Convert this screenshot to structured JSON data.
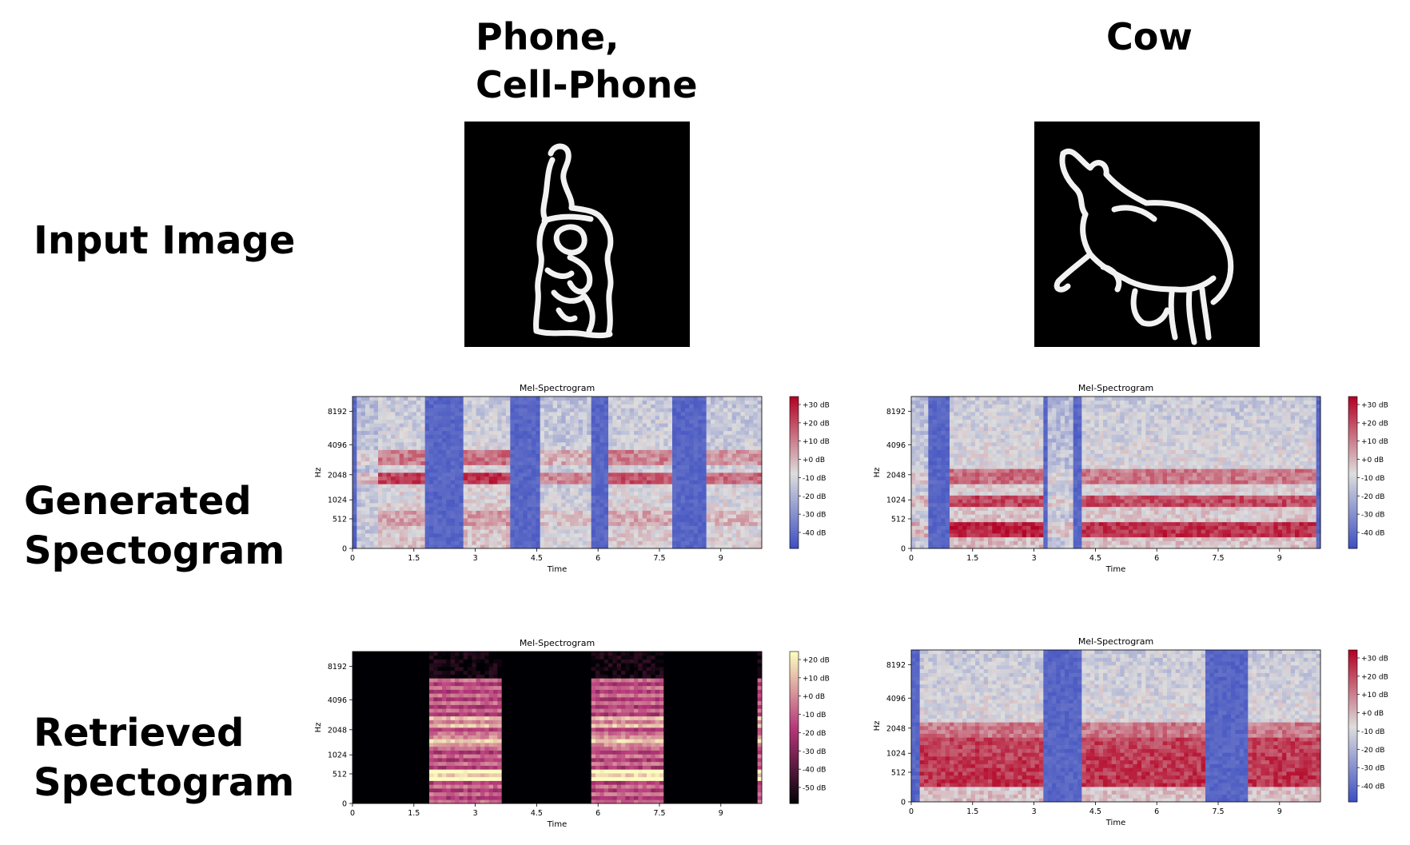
{
  "columns": [
    {
      "title": "Phone,\nCell-Phone",
      "sketch_icon": "phone-sketch"
    },
    {
      "title": "Cow",
      "sketch_icon": "cow-sketch"
    }
  ],
  "rows": [
    {
      "label": "Input Image"
    },
    {
      "label": "Generated\nSpectogram"
    },
    {
      "label": "Retrieved\nSpectogram"
    }
  ],
  "chart_data": [
    {
      "id": "generated-phone",
      "type": "heatmap",
      "title": "Mel-Spectrogram",
      "xlabel": "Time",
      "ylabel": "Hz",
      "xticks": [
        "0",
        "1.5",
        "3",
        "4.5",
        "6",
        "7.5",
        "9"
      ],
      "yticks": [
        "0",
        "512",
        "1024",
        "2048",
        "4096",
        "8192"
      ],
      "xlim": [
        0,
        10
      ],
      "colormap": "coolwarm",
      "colorbar_ticks": [
        "+30 dB",
        "+20 dB",
        "+10 dB",
        "+0 dB",
        "-10 dB",
        "-20 dB",
        "-30 dB",
        "-40 dB"
      ],
      "colors": {
        "low": "#3b4cc0",
        "mid": "#dddddd",
        "high": "#b40426"
      },
      "segments": [
        [
          0.1,
          0.6,
          0.35
        ],
        [
          0.65,
          1.8,
          0.8
        ],
        [
          2.7,
          3.9,
          0.85
        ],
        [
          4.6,
          5.8,
          0.55
        ],
        [
          6.2,
          7.8,
          0.75
        ],
        [
          8.6,
          9.95,
          0.65
        ]
      ],
      "bands": [
        [
          1700,
          2100,
          1.0
        ],
        [
          2700,
          3300,
          0.7
        ],
        [
          400,
          600,
          0.3
        ]
      ]
    },
    {
      "id": "generated-cow",
      "type": "heatmap",
      "title": "Mel-Spectrogram",
      "xlabel": "Time",
      "ylabel": "Hz",
      "xticks": [
        "0",
        "1.5",
        "3",
        "4.5",
        "6",
        "7.5",
        "9"
      ],
      "yticks": [
        "0",
        "512",
        "1024",
        "2048",
        "4096",
        "8192"
      ],
      "xlim": [
        0,
        10
      ],
      "colormap": "coolwarm",
      "colorbar_ticks": [
        "+30 dB",
        "+20 dB",
        "+10 dB",
        "+0 dB",
        "-10 dB",
        "-20 dB",
        "-30 dB",
        "-40 dB"
      ],
      "colors": {
        "low": "#3b4cc0",
        "mid": "#dddddd",
        "high": "#b40426"
      },
      "segments": [
        [
          0,
          0.4,
          0.4
        ],
        [
          0.9,
          3.2,
          0.9
        ],
        [
          3.3,
          4.0,
          0.3
        ],
        [
          4.2,
          9.9,
          0.85
        ]
      ],
      "bands": [
        [
          200,
          400,
          0.9
        ],
        [
          900,
          1100,
          0.8
        ],
        [
          1800,
          2200,
          0.6
        ]
      ]
    },
    {
      "id": "retrieved-phone",
      "type": "heatmap",
      "title": "Mel-Spectrogram",
      "xlabel": "Time",
      "ylabel": "Hz",
      "xticks": [
        "0",
        "1.5",
        "3",
        "4.5",
        "6",
        "7.5",
        "9"
      ],
      "yticks": [
        "0",
        "512",
        "1024",
        "2048",
        "4096",
        "8192"
      ],
      "xlim": [
        0,
        10
      ],
      "colormap": "magma",
      "colorbar_ticks": [
        "+20 dB",
        "+10 dB",
        "+0 dB",
        "-10 dB",
        "-20 dB",
        "-30 dB",
        "-40 dB",
        "-50 dB"
      ],
      "colors": {
        "low": "#000004",
        "mid": "#b5367a",
        "high": "#fcfdbf"
      },
      "segments": [
        [
          1.85,
          3.6,
          0.9
        ],
        [
          5.85,
          7.6,
          0.9
        ],
        [
          9.85,
          10.0,
          0.9
        ]
      ],
      "bands": [
        [
          450,
          560,
          1.0
        ],
        [
          1400,
          1600,
          0.6
        ],
        [
          2300,
          2700,
          0.5
        ]
      ]
    },
    {
      "id": "retrieved-cow",
      "type": "heatmap",
      "title": "Mel-Spectrogram",
      "xlabel": "Time",
      "ylabel": "Hz",
      "xticks": [
        "0",
        "1.5",
        "3",
        "4.5",
        "6",
        "7.5",
        "9"
      ],
      "yticks": [
        "0",
        "512",
        "1024",
        "2048",
        "4096",
        "8192"
      ],
      "xlim": [
        0,
        10
      ],
      "colormap": "coolwarm",
      "colorbar_ticks": [
        "+30 dB",
        "+20 dB",
        "+10 dB",
        "+0 dB",
        "-10 dB",
        "-20 dB",
        "-30 dB",
        "-40 dB"
      ],
      "colors": {
        "low": "#3b4cc0",
        "mid": "#dddddd",
        "high": "#b40426"
      },
      "segments": [
        [
          0.25,
          3.2,
          0.85
        ],
        [
          4.2,
          7.2,
          0.85
        ],
        [
          8.2,
          10.0,
          0.85
        ]
      ],
      "bands": [
        [
          300,
          1500,
          0.9
        ],
        [
          1800,
          2300,
          0.6
        ]
      ]
    }
  ]
}
